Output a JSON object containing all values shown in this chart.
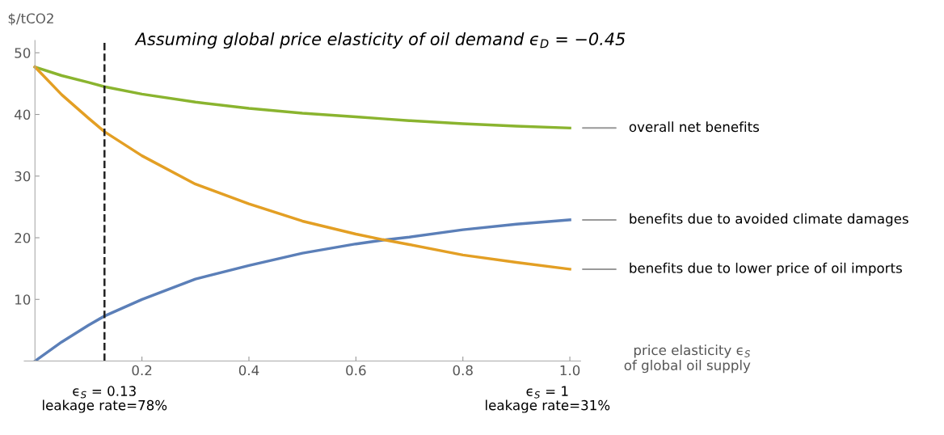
{
  "chart_data": {
    "type": "line",
    "title": "Assuming global price elasticity of oil demand ϵ$_{D}$ = −0.45",
    "xlabel": "price elasticity ϵ$_{S}$\nof global oil supply",
    "ylabel": "$/tCO2",
    "x": [
      0,
      0.05,
      0.1,
      0.13,
      0.2,
      0.3,
      0.4,
      0.5,
      0.6,
      0.65,
      0.7,
      0.8,
      0.9,
      1.0
    ],
    "series": [
      {
        "name": "overall net benefits",
        "color": "#8ab42f",
        "values": [
          47.7,
          46.3,
          45.2,
          44.5,
          43.3,
          42.0,
          41.0,
          40.2,
          39.6,
          39.3,
          39.0,
          38.5,
          38.1,
          37.8
        ]
      },
      {
        "name": "benefits due to avoided climate damages",
        "color": "#5b7fb8",
        "values": [
          0,
          3.1,
          5.8,
          7.3,
          10.0,
          13.3,
          15.5,
          17.5,
          19.0,
          19.6,
          20.1,
          21.3,
          22.2,
          22.9
        ]
      },
      {
        "name": "benefits due to lower price of oil imports",
        "color": "#e39f24",
        "values": [
          47.7,
          43.2,
          39.4,
          37.2,
          33.3,
          28.7,
          25.5,
          22.7,
          20.6,
          19.7,
          18.9,
          17.2,
          16.0,
          14.9
        ]
      }
    ],
    "xlim": [
      -0.02,
      1.02
    ],
    "ylim": [
      0,
      52
    ],
    "xticks": [
      0.2,
      0.4,
      0.6,
      0.8,
      {
        "value": 1,
        "label": "1.0"
      }
    ],
    "yticks": [
      10,
      20,
      30,
      40,
      50
    ],
    "ref_lines": [
      {
        "axis": "x",
        "value": 0.13,
        "label": "ϵ$_{S}$ = 0.13\nleakage rate=78%",
        "color": "#222222",
        "line_style": "dashed"
      }
    ],
    "annotations": [
      "ϵ$_{S}$ = 1\nleakage rate=31%"
    ],
    "grid": false,
    "legend": false,
    "line_style": "solid",
    "marker": "none"
  }
}
